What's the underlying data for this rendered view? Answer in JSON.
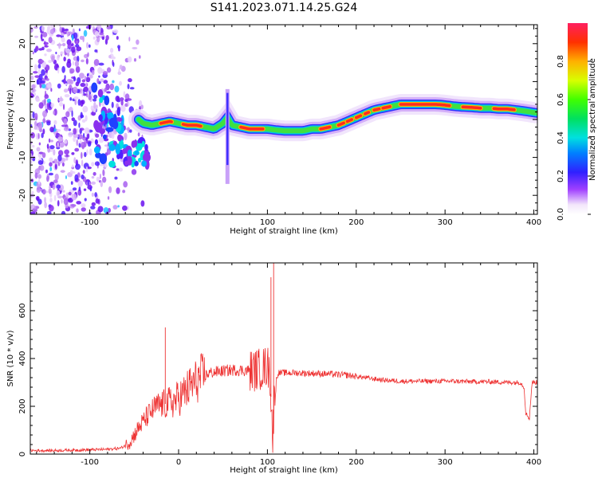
{
  "title": "S141.2023.071.14.25.G24",
  "chart_data": [
    {
      "type": "heatmap",
      "xlabel": "Height of straight line (km)",
      "ylabel": "Frequency (Hz)",
      "xlim": [
        -167,
        404
      ],
      "ylim": [
        -25,
        25
      ],
      "xticks": [
        -100,
        0,
        100,
        200,
        300,
        400
      ],
      "yticks": [
        -20,
        -10,
        0,
        10,
        20
      ],
      "colorbar": {
        "label": "Normalized spectral amplitude",
        "range": [
          0,
          1
        ],
        "ticks": [
          "0.0",
          "0.2",
          "0.4",
          "0.6",
          "0.8"
        ]
      },
      "ridge": {
        "x": [
          -45,
          -40,
          -30,
          -20,
          -10,
          0,
          10,
          20,
          30,
          40,
          50,
          55,
          60,
          70,
          80,
          90,
          100,
          110,
          120,
          130,
          140,
          150,
          160,
          170,
          180,
          190,
          200,
          210,
          220,
          230,
          240,
          250,
          260,
          270,
          280,
          290,
          300,
          310,
          320,
          330,
          340,
          350,
          360,
          370,
          380,
          390,
          404
        ],
        "y": [
          0,
          -1,
          -1.5,
          -1,
          -0.5,
          -1,
          -1.5,
          -1.5,
          -2,
          -2.5,
          -1,
          0.5,
          -1.5,
          -2,
          -2.5,
          -2.5,
          -2.5,
          -2.8,
          -3,
          -3,
          -3,
          -2.5,
          -2.5,
          -2,
          -1.5,
          -0.5,
          0.5,
          1.5,
          2.5,
          3,
          3.5,
          4,
          4,
          4,
          4,
          4,
          3.8,
          3.5,
          3.3,
          3.2,
          3,
          3,
          2.8,
          2.8,
          2.5,
          2.2,
          1.7
        ]
      },
      "noise_region_x": [
        -167,
        -40
      ],
      "grid": false
    },
    {
      "type": "line",
      "xlabel": "Height of straight line (km)",
      "ylabel": "SNR (10 * v/v)",
      "xlim": [
        -167,
        404
      ],
      "ylim": [
        0,
        800
      ],
      "xticks": [
        -100,
        0,
        100,
        200,
        300,
        400
      ],
      "yticks": [
        0,
        200,
        400,
        600
      ],
      "color": "#ee3333",
      "series": [
        {
          "x": [
            -167,
            -140,
            -100,
            -80,
            -65,
            -55,
            -45,
            -35,
            -25,
            -15,
            -5,
            5,
            15,
            25,
            35,
            45,
            55,
            65,
            75,
            85,
            95,
            100,
            103,
            106,
            108,
            112,
            130,
            150,
            170,
            190,
            210,
            230,
            250,
            270,
            290,
            310,
            330,
            350,
            370,
            385,
            389,
            391,
            395,
            398,
            404
          ],
          "y": [
            15,
            15,
            18,
            20,
            25,
            50,
            110,
            160,
            200,
            210,
            220,
            250,
            290,
            320,
            340,
            345,
            350,
            352,
            350,
            350,
            360,
            370,
            330,
            60,
            280,
            340,
            340,
            338,
            335,
            330,
            320,
            310,
            305,
            305,
            305,
            305,
            303,
            303,
            300,
            300,
            280,
            170,
            150,
            300,
            300
          ]
        }
      ],
      "spikes": [
        {
          "x": -15,
          "y": 530
        },
        {
          "x": 104,
          "y": 740
        },
        {
          "x": 107,
          "y": 800
        }
      ],
      "grid": false
    }
  ]
}
